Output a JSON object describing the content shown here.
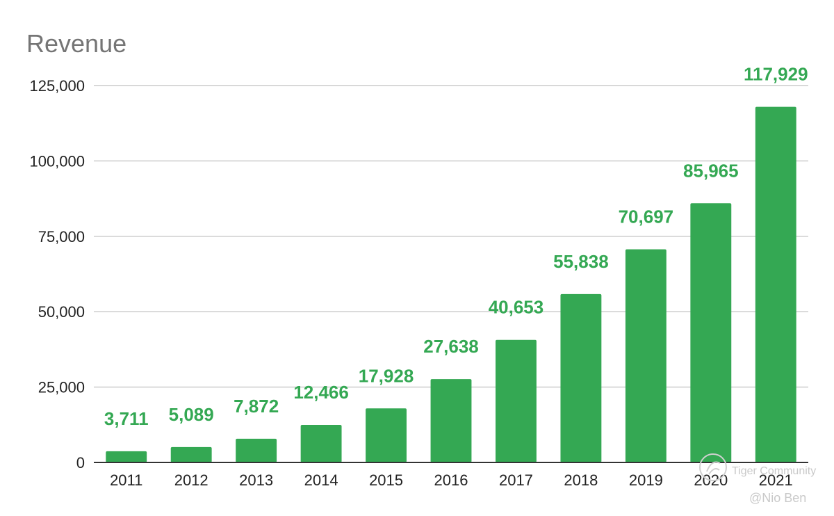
{
  "chart_data": {
    "type": "bar",
    "title": "Revenue",
    "xlabel": "",
    "ylabel": "",
    "categories": [
      "2011",
      "2012",
      "2013",
      "2014",
      "2015",
      "2016",
      "2017",
      "2018",
      "2019",
      "2020",
      "2021"
    ],
    "values": [
      3711,
      5089,
      7872,
      12466,
      17928,
      27638,
      40653,
      55838,
      70697,
      85965,
      117929
    ],
    "data_labels": [
      "3,711",
      "5,089",
      "7,872",
      "12,466",
      "17,928",
      "27,638",
      "40,653",
      "55,838",
      "70,697",
      "85,965",
      "117,929"
    ],
    "ylim": [
      0,
      125000
    ],
    "yticks": [
      0,
      25000,
      50000,
      75000,
      100000,
      125000
    ],
    "ytick_labels": [
      "0",
      "25,000",
      "50,000",
      "75,000",
      "100,000",
      "125,000"
    ],
    "grid": true,
    "legend": "none",
    "colors": {
      "bar": "#34a853",
      "label": "#34a853",
      "grid": "#cccccc",
      "axis": "#333333"
    }
  },
  "watermark": {
    "brand": "Tiger Community",
    "author": "@Nio Ben",
    "logo_icon": "tiger-logo-icon"
  }
}
